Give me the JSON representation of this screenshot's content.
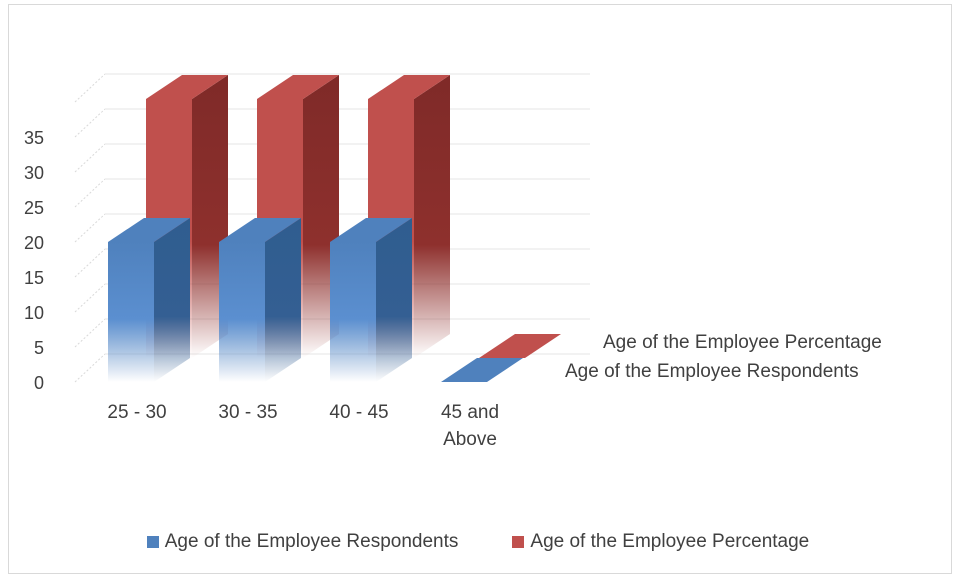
{
  "chart_data": {
    "type": "bar",
    "categories": [
      "25 - 30",
      "30 - 35",
      "40 - 45",
      "45 and Above"
    ],
    "series": [
      {
        "name": "Age of the Employee Respondents",
        "values": [
          20,
          20,
          20,
          0
        ],
        "color": "#4f81bd"
      },
      {
        "name": "Age of the Employee Percentage",
        "values": [
          37,
          37,
          37,
          0
        ],
        "color": "#c0504d"
      }
    ],
    "yticks": [
      "0",
      "5",
      "10",
      "15",
      "20",
      "25",
      "30",
      "35"
    ],
    "ylim": [
      0,
      40
    ],
    "grid": true,
    "legend": "bottom",
    "projection": "3d"
  }
}
